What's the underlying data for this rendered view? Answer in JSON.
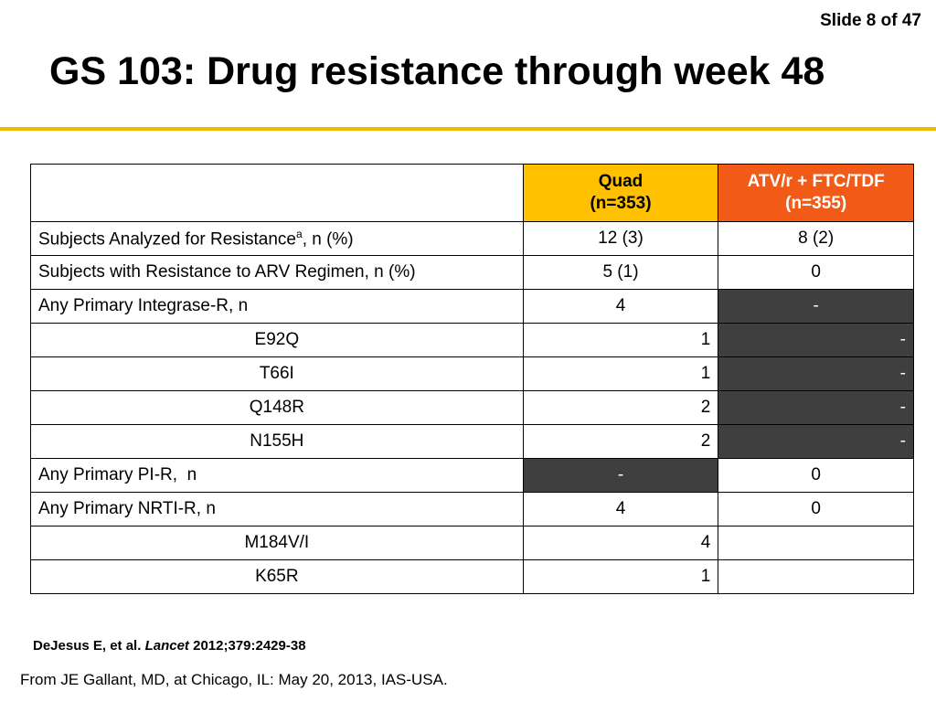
{
  "slide_counter": "Slide 8 of 47",
  "title": "GS 103: Drug resistance through week 48",
  "accent_color": "#f5b800",
  "table": {
    "header": {
      "col1": "",
      "quad_name": "Quad",
      "quad_n": "(n=353)",
      "quad_color": "#ffc000",
      "atv_name": "ATV/r + FTC/TDF",
      "atv_n": "(n=355)",
      "atv_color": "#f15a17"
    },
    "rows": [
      {
        "label": "Subjects Analyzed for Resistance",
        "label_sup": "a",
        "label_suffix": ", n (%)",
        "quad": "12 (3)",
        "atv": "8 (2)"
      },
      {
        "label": "Subjects with Resistance to ARV Regimen, n (%)",
        "quad": "5 (1)",
        "atv": "0"
      },
      {
        "label": "Any Primary Integrase-R, n",
        "quad": "4",
        "atv": "-"
      },
      {
        "label": "E92Q",
        "quad": "1",
        "atv": "-"
      },
      {
        "label": "T66I",
        "quad": "1",
        "atv": "-"
      },
      {
        "label": "Q148R",
        "quad": "2",
        "atv": "-"
      },
      {
        "label": "N155H",
        "quad": "2",
        "atv": "-"
      },
      {
        "label": "Any Primary PI-R,  n",
        "quad": "-",
        "atv": "0"
      },
      {
        "label": "Any Primary NRTI-R, n",
        "quad": "4",
        "atv": "0"
      },
      {
        "label": "M184V/I",
        "quad": "4",
        "atv": ""
      },
      {
        "label": "K65R",
        "quad": "1",
        "atv": ""
      }
    ],
    "shaded_color": "#3f3f3f"
  },
  "citation": {
    "authors": "DeJesus E, et al.",
    "journal": "Lancet",
    "ref": "2012;379:2429-38"
  },
  "footer": "From JE Gallant, MD, at Chicago, IL: May 20, 2013, IAS-USA."
}
